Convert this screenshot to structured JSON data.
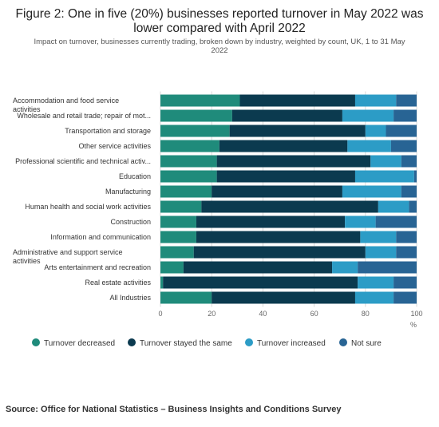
{
  "chart_data": {
    "type": "bar",
    "orientation": "horizontal",
    "stacked": true,
    "title_lines": [
      "Figure 2: One in five (20%) businesses reported turnover in May 2022 was",
      "lower compared with April 2022"
    ],
    "subtitle_lines": [
      "Impact on turnover, businesses currently trading, broken down by industry, weighted by count, UK, 1 to 31 May",
      "2022"
    ],
    "categories": [
      [
        "Accommodation and food service",
        "activities"
      ],
      [
        "Wholesale and retail trade; repair of mot..."
      ],
      [
        "Transportation and storage"
      ],
      [
        "Other service activities"
      ],
      [
        "Professional scientific and technical activ..."
      ],
      [
        "Education"
      ],
      [
        "Manufacturing"
      ],
      [
        "Human health and social work activities"
      ],
      [
        "Construction"
      ],
      [
        "Information and communication"
      ],
      [
        "Administrative and support service",
        "activities"
      ],
      [
        "Arts entertainment and recreation"
      ],
      [
        "Real estate activities"
      ],
      [
        "All Industries"
      ]
    ],
    "series": [
      {
        "name": "Turnover decreased",
        "color": "#1f8b7b",
        "values": [
          31,
          28,
          27,
          23,
          22,
          22,
          20,
          16,
          14,
          14,
          13,
          9,
          1,
          20
        ]
      },
      {
        "name": "Turnover stayed the same",
        "color": "#0b3a4f",
        "values": [
          45,
          43,
          53,
          50,
          60,
          54,
          51,
          69,
          58,
          64,
          67,
          58,
          76,
          56
        ]
      },
      {
        "name": "Turnover increased",
        "color": "#2c9cc6",
        "values": [
          16,
          20,
          8,
          17,
          12,
          23,
          23,
          12,
          12,
          14,
          12,
          10,
          14,
          15
        ]
      },
      {
        "name": "Not sure",
        "color": "#286494",
        "values": [
          8,
          9,
          12,
          10,
          6,
          1,
          6,
          3,
          16,
          8,
          8,
          23,
          9,
          9
        ]
      }
    ],
    "x_ticks": [
      "0",
      "20",
      "40",
      "60",
      "80",
      "100"
    ],
    "xlim": [
      0,
      100
    ],
    "xlabel": "%",
    "grid": true,
    "legend_position": "bottom"
  },
  "source": "Source: Office for National Statistics – Business Insights and Conditions Survey"
}
